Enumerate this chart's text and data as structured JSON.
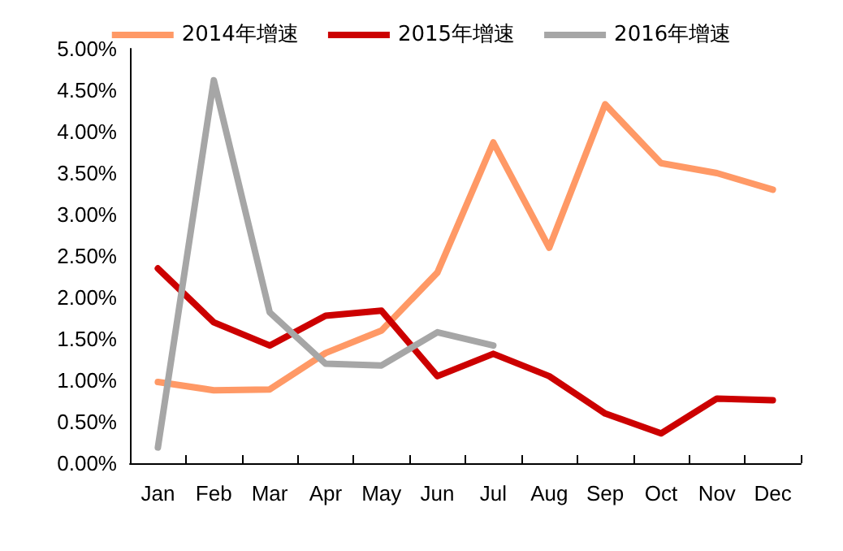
{
  "chart_data": {
    "type": "line",
    "categories": [
      "Jan",
      "Feb",
      "Mar",
      "Apr",
      "May",
      "Jun",
      "Jul",
      "Aug",
      "Sep",
      "Oct",
      "Nov",
      "Dec"
    ],
    "series": [
      {
        "name": "2014年增速",
        "color": "#ff9966",
        "values": [
          0.98,
          0.88,
          0.89,
          1.33,
          1.6,
          2.3,
          3.87,
          2.6,
          4.33,
          3.62,
          3.5,
          3.3
        ]
      },
      {
        "name": "2015年增速",
        "color": "#cc0000",
        "values": [
          2.35,
          1.7,
          1.42,
          1.78,
          1.84,
          1.05,
          1.32,
          1.05,
          0.6,
          0.36,
          0.78,
          0.76
        ]
      },
      {
        "name": "2016年增速",
        "color": "#a6a6a6",
        "values": [
          0.19,
          4.62,
          1.82,
          1.2,
          1.18,
          1.58,
          1.42,
          null,
          null,
          null,
          null,
          null
        ]
      }
    ],
    "ylim": [
      0,
      5
    ],
    "yticks": [
      {
        "value": 0,
        "label": "0.00%"
      },
      {
        "value": 0.5,
        "label": "0.50%"
      },
      {
        "value": 1,
        "label": "1.00%"
      },
      {
        "value": 1.5,
        "label": "1.50%"
      },
      {
        "value": 2,
        "label": "2.00%"
      },
      {
        "value": 2.5,
        "label": "2.50%"
      },
      {
        "value": 3,
        "label": "3.00%"
      },
      {
        "value": 3.5,
        "label": "3.50%"
      },
      {
        "value": 4,
        "label": "4.00%"
      },
      {
        "value": 4.5,
        "label": "4.50%"
      },
      {
        "value": 5,
        "label": "5.00%"
      }
    ],
    "grid": false,
    "legend": "top",
    "marker": "none",
    "line_style": "solid"
  }
}
